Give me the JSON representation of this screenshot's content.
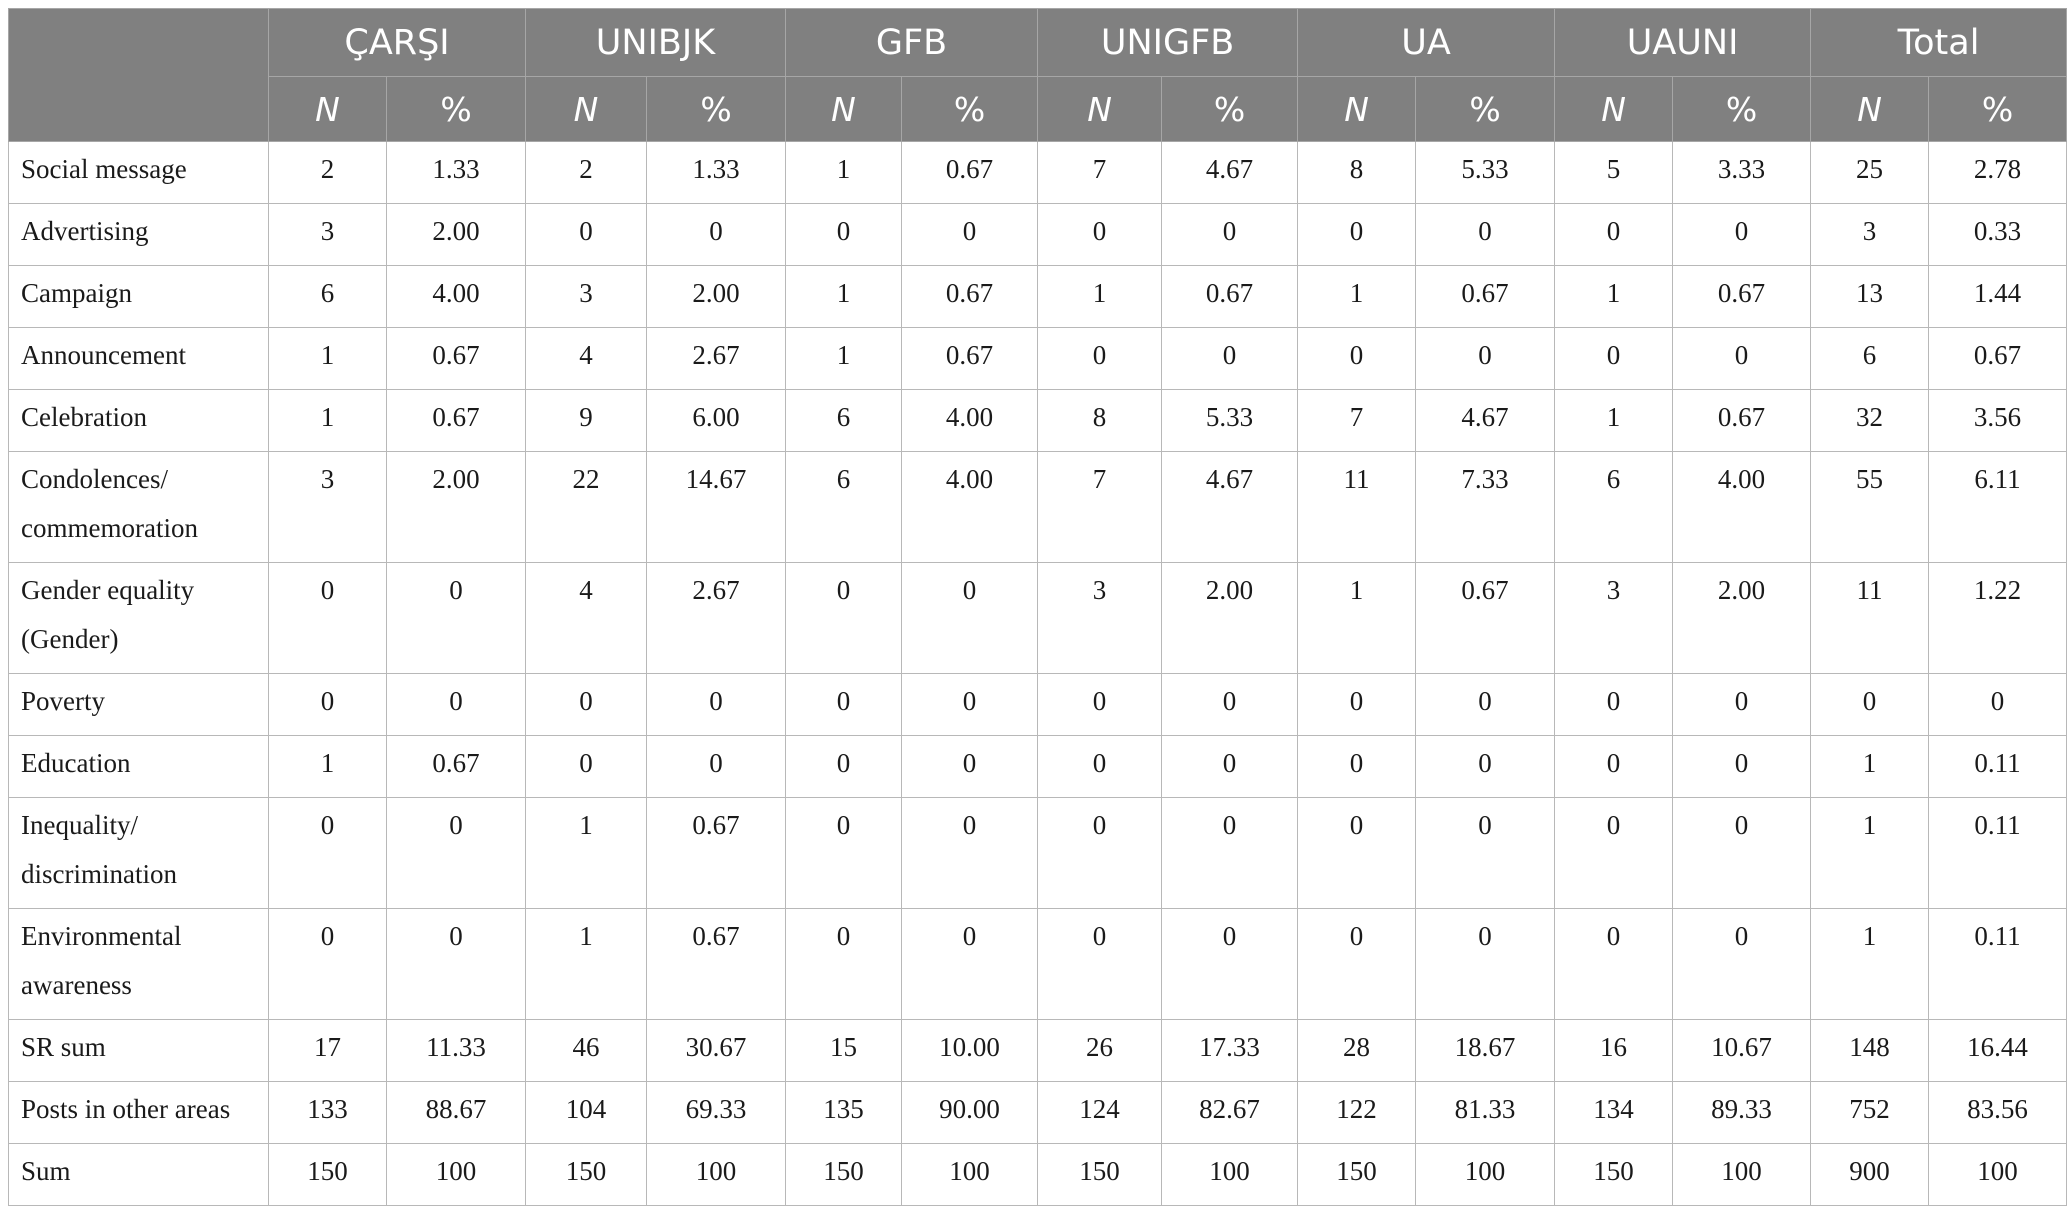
{
  "groups": [
    "ÇARŞI",
    "UNIBJK",
    "GFB",
    "UNIGFB",
    "UA",
    "UAUNI",
    "Total"
  ],
  "sub_headers": {
    "n": "N",
    "pct": "%"
  },
  "rows": [
    {
      "label": "Social message",
      "values": [
        "2",
        "1.33",
        "2",
        "1.33",
        "1",
        "0.67",
        "7",
        "4.67",
        "8",
        "5.33",
        "5",
        "3.33",
        "25",
        "2.78"
      ]
    },
    {
      "label": "Advertising",
      "values": [
        "3",
        "2.00",
        "0",
        "0",
        "0",
        "0",
        "0",
        "0",
        "0",
        "0",
        "0",
        "0",
        "3",
        "0.33"
      ]
    },
    {
      "label": "Campaign",
      "values": [
        "6",
        "4.00",
        "3",
        "2.00",
        "1",
        "0.67",
        "1",
        "0.67",
        "1",
        "0.67",
        "1",
        "0.67",
        "13",
        "1.44"
      ]
    },
    {
      "label": "Announcement",
      "values": [
        "1",
        "0.67",
        "4",
        "2.67",
        "1",
        "0.67",
        "0",
        "0",
        "0",
        "0",
        "0",
        "0",
        "6",
        "0.67"
      ]
    },
    {
      "label": "Celebration",
      "values": [
        "1",
        "0.67",
        "9",
        "6.00",
        "6",
        "4.00",
        "8",
        "5.33",
        "7",
        "4.67",
        "1",
        "0.67",
        "32",
        "3.56"
      ]
    },
    {
      "label": "Condolences/\ncommemoration",
      "values": [
        "3",
        "2.00",
        "22",
        "14.67",
        "6",
        "4.00",
        "7",
        "4.67",
        "11",
        "7.33",
        "6",
        "4.00",
        "55",
        "6.11"
      ]
    },
    {
      "label": "Gender equality\n(Gender)",
      "values": [
        "0",
        "0",
        "4",
        "2.67",
        "0",
        "0",
        "3",
        "2.00",
        "1",
        "0.67",
        "3",
        "2.00",
        "11",
        "1.22"
      ]
    },
    {
      "label": "Poverty",
      "values": [
        "0",
        "0",
        "0",
        "0",
        "0",
        "0",
        "0",
        "0",
        "0",
        "0",
        "0",
        "0",
        "0",
        "0"
      ]
    },
    {
      "label": "Education",
      "values": [
        "1",
        "0.67",
        "0",
        "0",
        "0",
        "0",
        "0",
        "0",
        "0",
        "0",
        "0",
        "0",
        "1",
        "0.11"
      ]
    },
    {
      "label": "Inequality/\ndiscrimination",
      "values": [
        "0",
        "0",
        "1",
        "0.67",
        "0",
        "0",
        "0",
        "0",
        "0",
        "0",
        "0",
        "0",
        "1",
        "0.11"
      ]
    },
    {
      "label": "Environmental\nawareness",
      "values": [
        "0",
        "0",
        "1",
        "0.67",
        "0",
        "0",
        "0",
        "0",
        "0",
        "0",
        "0",
        "0",
        "1",
        "0.11"
      ]
    },
    {
      "label": "SR sum",
      "values": [
        "17",
        "11.33",
        "46",
        "30.67",
        "15",
        "10.00",
        "26",
        "17.33",
        "28",
        "18.67",
        "16",
        "10.67",
        "148",
        "16.44"
      ]
    },
    {
      "label": "Posts in other areas",
      "values": [
        "133",
        "88.67",
        "104",
        "69.33",
        "135",
        "90.00",
        "124",
        "82.67",
        "122",
        "81.33",
        "134",
        "89.33",
        "752",
        "83.56"
      ]
    },
    {
      "label": "Sum",
      "values": [
        "150",
        "100",
        "150",
        "100",
        "150",
        "100",
        "150",
        "100",
        "150",
        "100",
        "150",
        "100",
        "900",
        "100"
      ]
    }
  ]
}
